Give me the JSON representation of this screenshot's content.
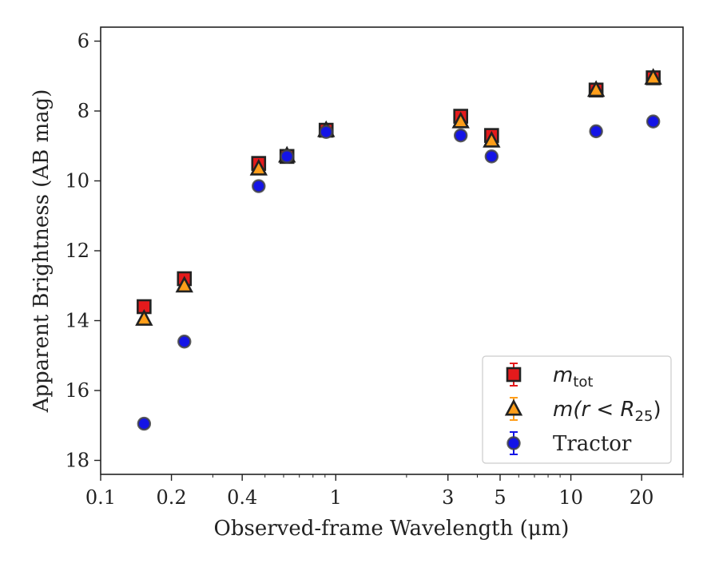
{
  "chart_data": {
    "type": "scatter",
    "title": "",
    "xlabel": "Observed-frame Wavelength (μm)",
    "ylabel": "Apparent Brightness (AB mag)",
    "xscale": "log",
    "yaxis_inverted": true,
    "xlim": [
      0.1,
      30
    ],
    "ylim": [
      18.4,
      5.6
    ],
    "x_ticks": [
      {
        "value": 0.1,
        "label": "0.1"
      },
      {
        "value": 0.2,
        "label": "0.2"
      },
      {
        "value": 0.4,
        "label": "0.4"
      },
      {
        "value": 1,
        "label": "1"
      },
      {
        "value": 3,
        "label": "3"
      },
      {
        "value": 5,
        "label": "5"
      },
      {
        "value": 10,
        "label": "10"
      },
      {
        "value": 20,
        "label": "20"
      }
    ],
    "y_ticks": [
      {
        "value": 6,
        "label": "6"
      },
      {
        "value": 8,
        "label": "8"
      },
      {
        "value": 10,
        "label": "10"
      },
      {
        "value": 12,
        "label": "12"
      },
      {
        "value": 14,
        "label": "14"
      },
      {
        "value": 16,
        "label": "16"
      },
      {
        "value": 18,
        "label": "18"
      }
    ],
    "grid": false,
    "legend_position": "bottom-right",
    "series": [
      {
        "key": "mtot",
        "legend_main": "m",
        "legend_sub": "tot",
        "marker": "square",
        "color": "#e41a1c",
        "edge": "#222222",
        "points": [
          {
            "x": 0.153,
            "y": 13.6
          },
          {
            "x": 0.227,
            "y": 12.8
          },
          {
            "x": 0.47,
            "y": 9.5
          },
          {
            "x": 0.62,
            "y": 9.3
          },
          {
            "x": 0.91,
            "y": 8.55
          },
          {
            "x": 3.4,
            "y": 8.15
          },
          {
            "x": 4.6,
            "y": 8.7
          },
          {
            "x": 12.8,
            "y": 7.4
          },
          {
            "x": 22.4,
            "y": 7.05
          }
        ]
      },
      {
        "key": "mr25",
        "legend_main": "m(r < R",
        "legend_sub": "25",
        "legend_tail": ")",
        "marker": "triangle",
        "color": "#ff9e1a",
        "edge": "#222222",
        "points": [
          {
            "x": 0.153,
            "y": 13.95
          },
          {
            "x": 0.227,
            "y": 13.0
          },
          {
            "x": 0.47,
            "y": 9.65
          },
          {
            "x": 0.62,
            "y": 9.28
          },
          {
            "x": 0.91,
            "y": 8.55
          },
          {
            "x": 3.4,
            "y": 8.3
          },
          {
            "x": 4.6,
            "y": 8.85
          },
          {
            "x": 12.8,
            "y": 7.4
          },
          {
            "x": 22.4,
            "y": 7.05
          }
        ]
      },
      {
        "key": "tractor",
        "legend_main": "Tractor",
        "marker": "circle",
        "color": "#1414e6",
        "edge": "#444444",
        "points": [
          {
            "x": 0.153,
            "y": 16.95
          },
          {
            "x": 0.227,
            "y": 14.6
          },
          {
            "x": 0.47,
            "y": 10.15
          },
          {
            "x": 0.62,
            "y": 9.3
          },
          {
            "x": 0.91,
            "y": 8.6
          },
          {
            "x": 3.4,
            "y": 8.7
          },
          {
            "x": 4.6,
            "y": 9.3
          },
          {
            "x": 12.8,
            "y": 8.58
          },
          {
            "x": 22.4,
            "y": 8.3
          }
        ]
      }
    ]
  }
}
